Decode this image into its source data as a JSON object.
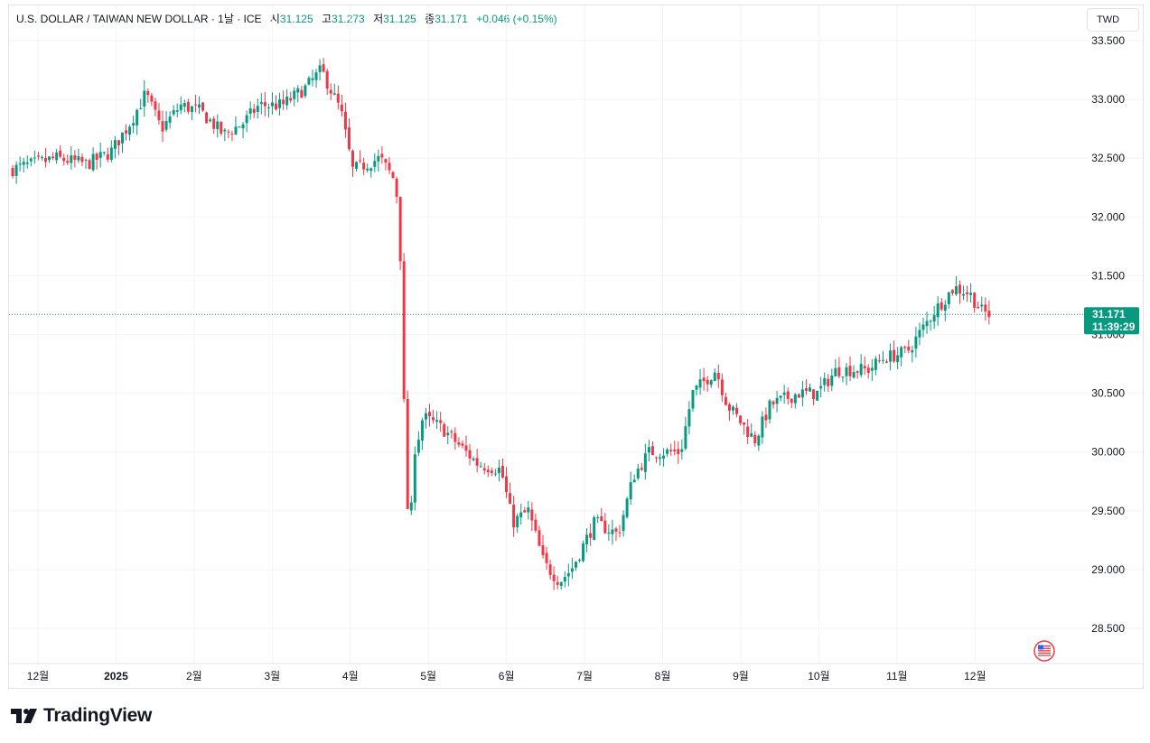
{
  "legend": {
    "symbol": "U.S. DOLLAR / TAIWAN NEW DOLLAR · 1날 · ICE",
    "open_label": "시",
    "open": "31.125",
    "high_label": "고",
    "high": "31.273",
    "low_label": "저",
    "low": "31.125",
    "close_label": "종",
    "close": "31.171",
    "change": "+0.046 (+0.15%)"
  },
  "currency_button": "TWD",
  "last_price_label": {
    "price": "31.171",
    "countdown": "11:39:29"
  },
  "branding": {
    "logo_icon": "tradingview-logo-icon",
    "name": "TradingView"
  },
  "flag_icon": "us-flag-icon",
  "colors": {
    "up": "#089981",
    "down": "#f23645",
    "grid": "#f0f3fa",
    "axis_text": "#131722"
  },
  "chart_data": {
    "type": "candlestick",
    "title": "U.S. DOLLAR / TAIWAN NEW DOLLAR · 1날 · ICE",
    "ylim": [
      28.2,
      33.8
    ],
    "grid": true,
    "y_ticks": [
      "28.500",
      "29.000",
      "29.500",
      "30.000",
      "30.500",
      "31.000",
      "31.500",
      "32.000",
      "32.500",
      "33.000",
      "33.500"
    ],
    "x_ticks": [
      {
        "label": "12월",
        "bold": false,
        "x": 0.37
      },
      {
        "label": "2025",
        "bold": true,
        "x": 1.37
      },
      {
        "label": "2월",
        "bold": false,
        "x": 2.37
      },
      {
        "label": "3월",
        "bold": false,
        "x": 3.37
      },
      {
        "label": "4월",
        "bold": false,
        "x": 4.37
      },
      {
        "label": "5월",
        "bold": false,
        "x": 5.37
      },
      {
        "label": "6월",
        "bold": false,
        "x": 6.37
      },
      {
        "label": "7월",
        "bold": false,
        "x": 7.37
      },
      {
        "label": "8월",
        "bold": false,
        "x": 8.37
      },
      {
        "label": "9월",
        "bold": false,
        "x": 9.37
      },
      {
        "label": "10월",
        "bold": false,
        "x": 10.37
      },
      {
        "label": "11월",
        "bold": false,
        "x": 11.37
      },
      {
        "label": "12월",
        "bold": false,
        "x": 12.37
      }
    ],
    "x_domain": [
      0,
      13.72
    ],
    "last_price": 31.171,
    "candle_path": [
      [
        0.0,
        32.4
      ],
      [
        0.6,
        32.5
      ],
      [
        1.0,
        32.45
      ],
      [
        1.3,
        32.55
      ],
      [
        1.55,
        32.8
      ],
      [
        1.75,
        33.05
      ],
      [
        1.95,
        32.75
      ],
      [
        2.2,
        32.95
      ],
      [
        2.45,
        32.9
      ],
      [
        2.75,
        32.7
      ],
      [
        3.0,
        32.8
      ],
      [
        3.2,
        32.95
      ],
      [
        3.5,
        32.95
      ],
      [
        3.8,
        33.1
      ],
      [
        4.0,
        33.25
      ],
      [
        4.25,
        32.9
      ],
      [
        4.4,
        32.4
      ],
      [
        4.75,
        32.5
      ],
      [
        4.95,
        32.3
      ],
      [
        5.0,
        31.9
      ],
      [
        5.05,
        30.6
      ],
      [
        5.12,
        29.2
      ],
      [
        5.2,
        30.0
      ],
      [
        5.3,
        30.3
      ],
      [
        5.55,
        30.2
      ],
      [
        6.0,
        29.9
      ],
      [
        6.3,
        29.85
      ],
      [
        6.45,
        29.4
      ],
      [
        6.65,
        29.5
      ],
      [
        6.85,
        29.05
      ],
      [
        7.05,
        28.9
      ],
      [
        7.2,
        29.0
      ],
      [
        7.5,
        29.4
      ],
      [
        7.8,
        29.3
      ],
      [
        8.0,
        29.8
      ],
      [
        8.2,
        30.0
      ],
      [
        8.6,
        30.0
      ],
      [
        8.75,
        30.5
      ],
      [
        9.05,
        30.7
      ],
      [
        9.2,
        30.4
      ],
      [
        9.55,
        30.1
      ],
      [
        9.75,
        30.4
      ],
      [
        10.1,
        30.5
      ],
      [
        10.35,
        30.5
      ],
      [
        10.6,
        30.7
      ],
      [
        11.0,
        30.7
      ],
      [
        11.2,
        30.8
      ],
      [
        11.5,
        30.85
      ],
      [
        11.65,
        31.0
      ],
      [
        11.85,
        31.2
      ],
      [
        12.1,
        31.4
      ],
      [
        12.3,
        31.35
      ],
      [
        12.45,
        31.2
      ],
      [
        12.55,
        31.17
      ]
    ]
  }
}
